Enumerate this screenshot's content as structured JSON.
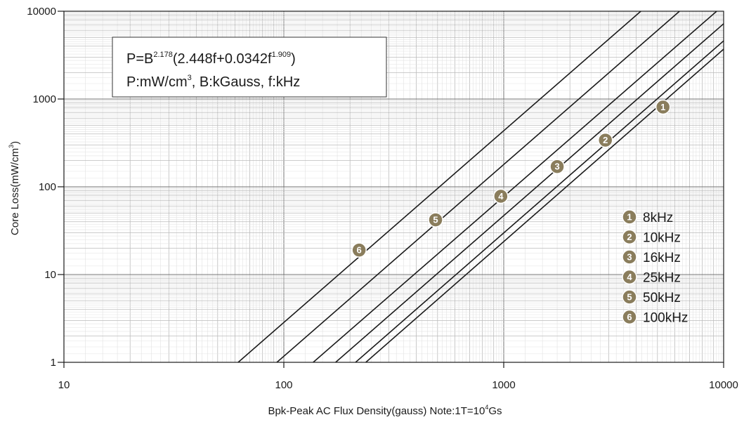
{
  "chart_data": {
    "type": "line",
    "x_scale": "log",
    "y_scale": "log",
    "xlim": [
      10,
      10000
    ],
    "ylim": [
      1,
      10000
    ],
    "grid": true,
    "legend_position": "bottom-right",
    "xlabel_parts": [
      "Bpk-Peak AC Flux Density(gauss) Note:1T=10",
      "4",
      "Gs"
    ],
    "ylabel_parts": [
      "Core Loss(mW/cm",
      "3",
      ")"
    ],
    "x_ticks": [
      {
        "value": 10,
        "label": "10"
      },
      {
        "value": 100,
        "label": "100"
      },
      {
        "value": 1000,
        "label": "1000"
      },
      {
        "value": 10000,
        "label": "10000"
      }
    ],
    "y_ticks": [
      {
        "value": 1,
        "label": "1"
      },
      {
        "value": 10,
        "label": "10"
      },
      {
        "value": 100,
        "label": "100"
      },
      {
        "value": 1000,
        "label": "1000"
      },
      {
        "value": 10000,
        "label": "10000"
      }
    ],
    "annotation": {
      "line1": {
        "a": "P=B",
        "a_sup": "2.178",
        "b": "(2.448f+0.0342f",
        "b_sup": "1.909",
        "c": ")"
      },
      "line2": {
        "a": "P:mW/cm",
        "a_sup": "3",
        "b": ", B:kGauss,  f:kHz"
      }
    },
    "series": [
      {
        "name": "8kHz",
        "marker": "1",
        "color": "#8a7d5c",
        "x": [
          236,
          10000
        ],
        "y": [
          1,
          3700
        ],
        "marker_at": [
          5300,
          810
        ]
      },
      {
        "name": "10kHz",
        "marker": "2",
        "color": "#8a7d5c",
        "x": [
          212,
          10000
        ],
        "y": [
          1,
          4600
        ],
        "marker_at": [
          2900,
          340
        ]
      },
      {
        "name": "16kHz",
        "marker": "3",
        "color": "#8a7d5c",
        "x": [
          172,
          10000
        ],
        "y": [
          1,
          7200
        ],
        "marker_at": [
          1750,
          170
        ]
      },
      {
        "name": "25kHz",
        "marker": "4",
        "color": "#8a7d5c",
        "x": [
          136,
          9300
        ],
        "y": [
          1,
          10000
        ],
        "marker_at": [
          970,
          78
        ]
      },
      {
        "name": "50kHz",
        "marker": "5",
        "color": "#8a7d5c",
        "x": [
          93,
          6300
        ],
        "y": [
          1,
          10000
        ],
        "marker_at": [
          490,
          42
        ]
      },
      {
        "name": "100kHz",
        "marker": "6",
        "color": "#8a7d5c",
        "x": [
          62,
          4200
        ],
        "y": [
          1,
          10000
        ],
        "marker_at": [
          220,
          19
        ]
      }
    ]
  }
}
